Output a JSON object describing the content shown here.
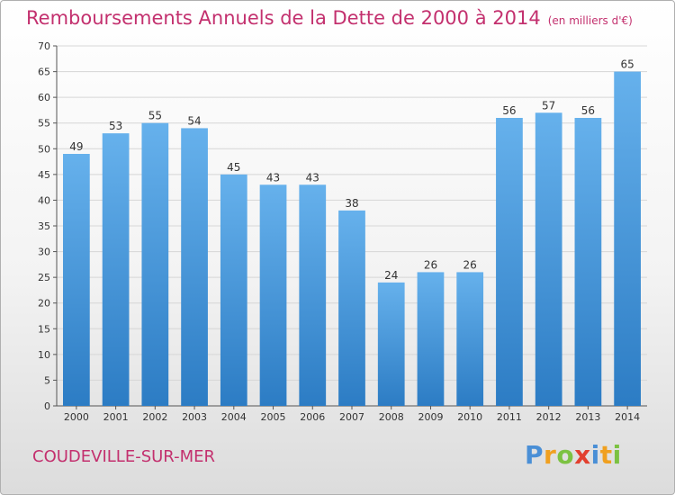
{
  "title": "Remboursements Annuels de la Dette de 2000 à 2014",
  "unit": "(en milliers d'€)",
  "city": "COUDEVILLE-SUR-MER",
  "logo": {
    "text": "Proxiti",
    "letters": [
      {
        "char": "P",
        "color": "#4a8fd6"
      },
      {
        "char": "r",
        "color": "#f0a020"
      },
      {
        "char": "o",
        "color": "#7cc242"
      },
      {
        "char": "x",
        "color": "#e2402f"
      },
      {
        "char": "i",
        "color": "#4a8fd6"
      },
      {
        "char": "t",
        "color": "#f0a020"
      },
      {
        "char": "i",
        "color": "#7cc242"
      }
    ]
  },
  "colors": {
    "accent": "#c3306e",
    "bar_light": "#66b1ec",
    "bar_dark": "#2c7cc4"
  },
  "chart_data": {
    "type": "bar",
    "title": "Remboursements Annuels de la Dette de 2000 à 2014",
    "xlabel": "",
    "ylabel": "",
    "unit": "(en milliers d'€)",
    "ylim": [
      0,
      70
    ],
    "yticks": [
      0,
      5,
      10,
      15,
      20,
      25,
      30,
      35,
      40,
      45,
      50,
      55,
      60,
      65,
      70
    ],
    "grid": "horizontal",
    "categories": [
      "2000",
      "2001",
      "2002",
      "2003",
      "2004",
      "2005",
      "2006",
      "2007",
      "2008",
      "2009",
      "2010",
      "2011",
      "2012",
      "2013",
      "2014"
    ],
    "values": [
      49,
      53,
      55,
      54,
      45,
      43,
      43,
      38,
      24,
      26,
      26,
      56,
      57,
      56,
      65
    ]
  }
}
